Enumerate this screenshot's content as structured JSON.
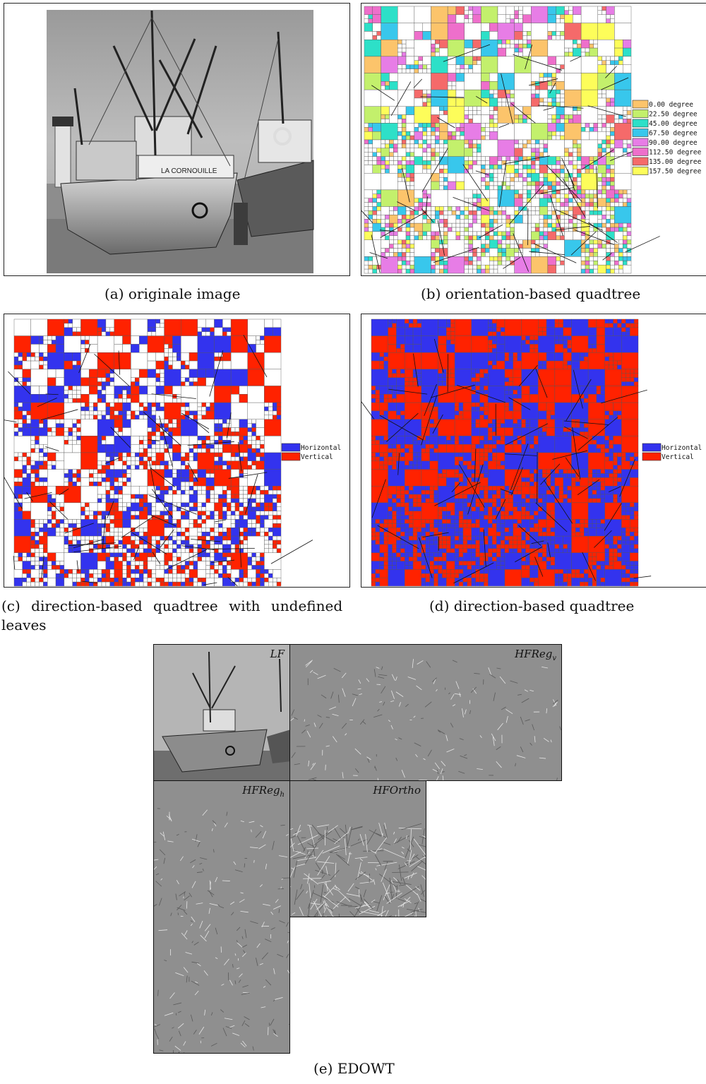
{
  "panels": {
    "a": {
      "caption": "(a) originale image",
      "boat_label": "LA CORNOUILLE"
    },
    "b": {
      "caption": "(b) orientation-based quadtree",
      "legend": [
        {
          "label": "0.00 degree",
          "color": "#fcc46b"
        },
        {
          "label": "22.50 degree",
          "color": "#c3f06c"
        },
        {
          "label": "45.00 degree",
          "color": "#2de0c8"
        },
        {
          "label": "67.50 degree",
          "color": "#38c7ec"
        },
        {
          "label": "90.00 degree",
          "color": "#e77de6"
        },
        {
          "label": "112.50 degree",
          "color": "#ee6fcb"
        },
        {
          "label": "135.00 degree",
          "color": "#f56a6a"
        },
        {
          "label": "157.50 degree",
          "color": "#fdfd5a"
        }
      ]
    },
    "c": {
      "caption_line1": "(c) direction-based quadtree with undefined",
      "caption_line2": "leaves",
      "legend": [
        {
          "label": "Horizontal",
          "color": "#3333ee"
        },
        {
          "label": "Vertical",
          "color": "#ff2200"
        }
      ]
    },
    "d": {
      "caption": "(d) direction-based quadtree",
      "legend": [
        {
          "label": "Horizontal",
          "color": "#3333ee"
        },
        {
          "label": "Vertical",
          "color": "#ff2200"
        }
      ]
    },
    "e": {
      "caption": "(e) EDOWT",
      "labels": {
        "lf": "LF",
        "hfregv": "HFReg",
        "hfregv_sub": "v",
        "hfregh": "HFReg",
        "hfregh_sub": "h",
        "hfortho": "HFOrtho"
      }
    }
  }
}
